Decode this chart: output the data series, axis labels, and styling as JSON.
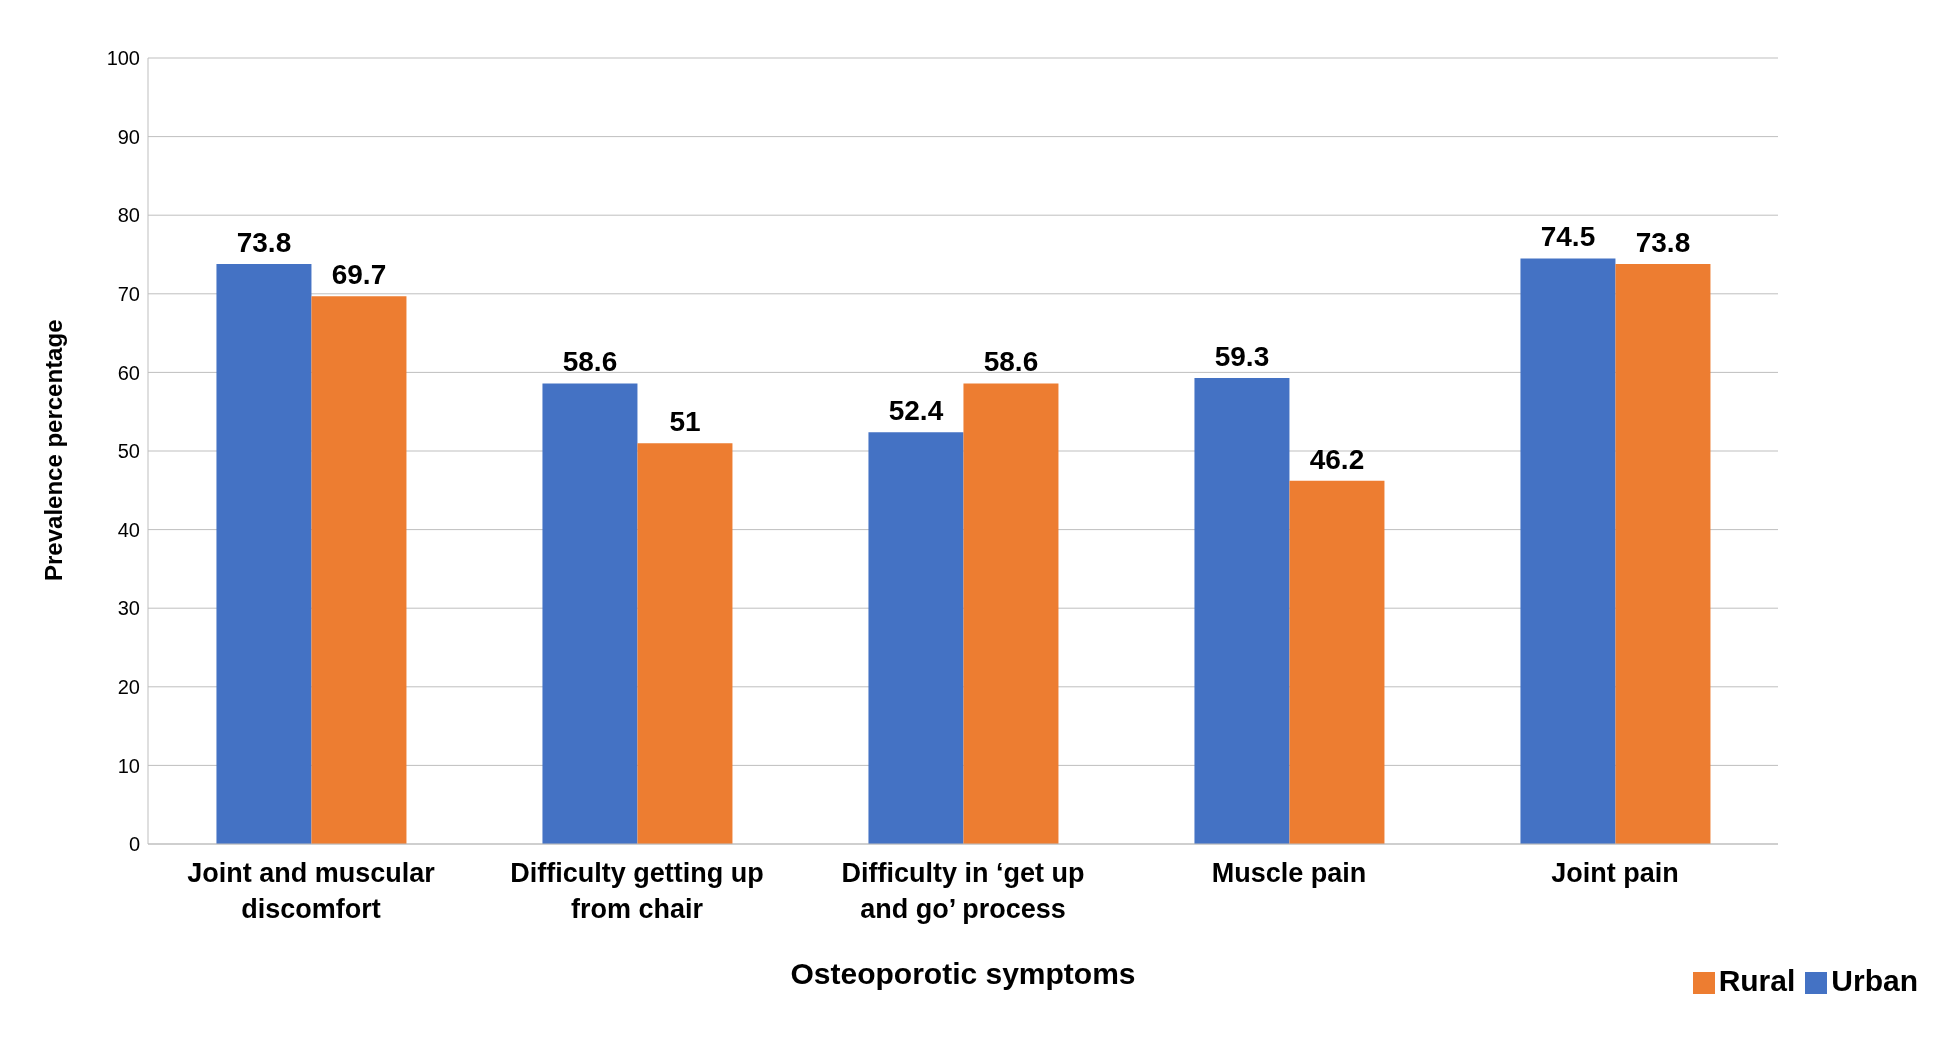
{
  "chart_data": {
    "type": "bar",
    "xlabel": "Osteoporotic symptoms",
    "ylabel": "Prevalence percentage",
    "categories": [
      "Joint and muscular discomfort",
      "Difficulty getting up from chair",
      "Difficulty in ‘get up and go’ process",
      "Muscle pain",
      "Joint pain"
    ],
    "series": [
      {
        "name": "Urban",
        "color": "#4472c4",
        "values": [
          73.8,
          58.6,
          52.4,
          59.3,
          74.5
        ]
      },
      {
        "name": "Rural",
        "color": "#ed7d31",
        "values": [
          69.7,
          51,
          58.6,
          46.2,
          73.8
        ]
      }
    ],
    "ylim": [
      0,
      100
    ],
    "yticks": [
      0,
      10,
      20,
      30,
      40,
      50,
      60,
      70,
      80,
      90,
      100
    ],
    "grid": "y",
    "legend": "bottom right",
    "data_labels": true
  }
}
